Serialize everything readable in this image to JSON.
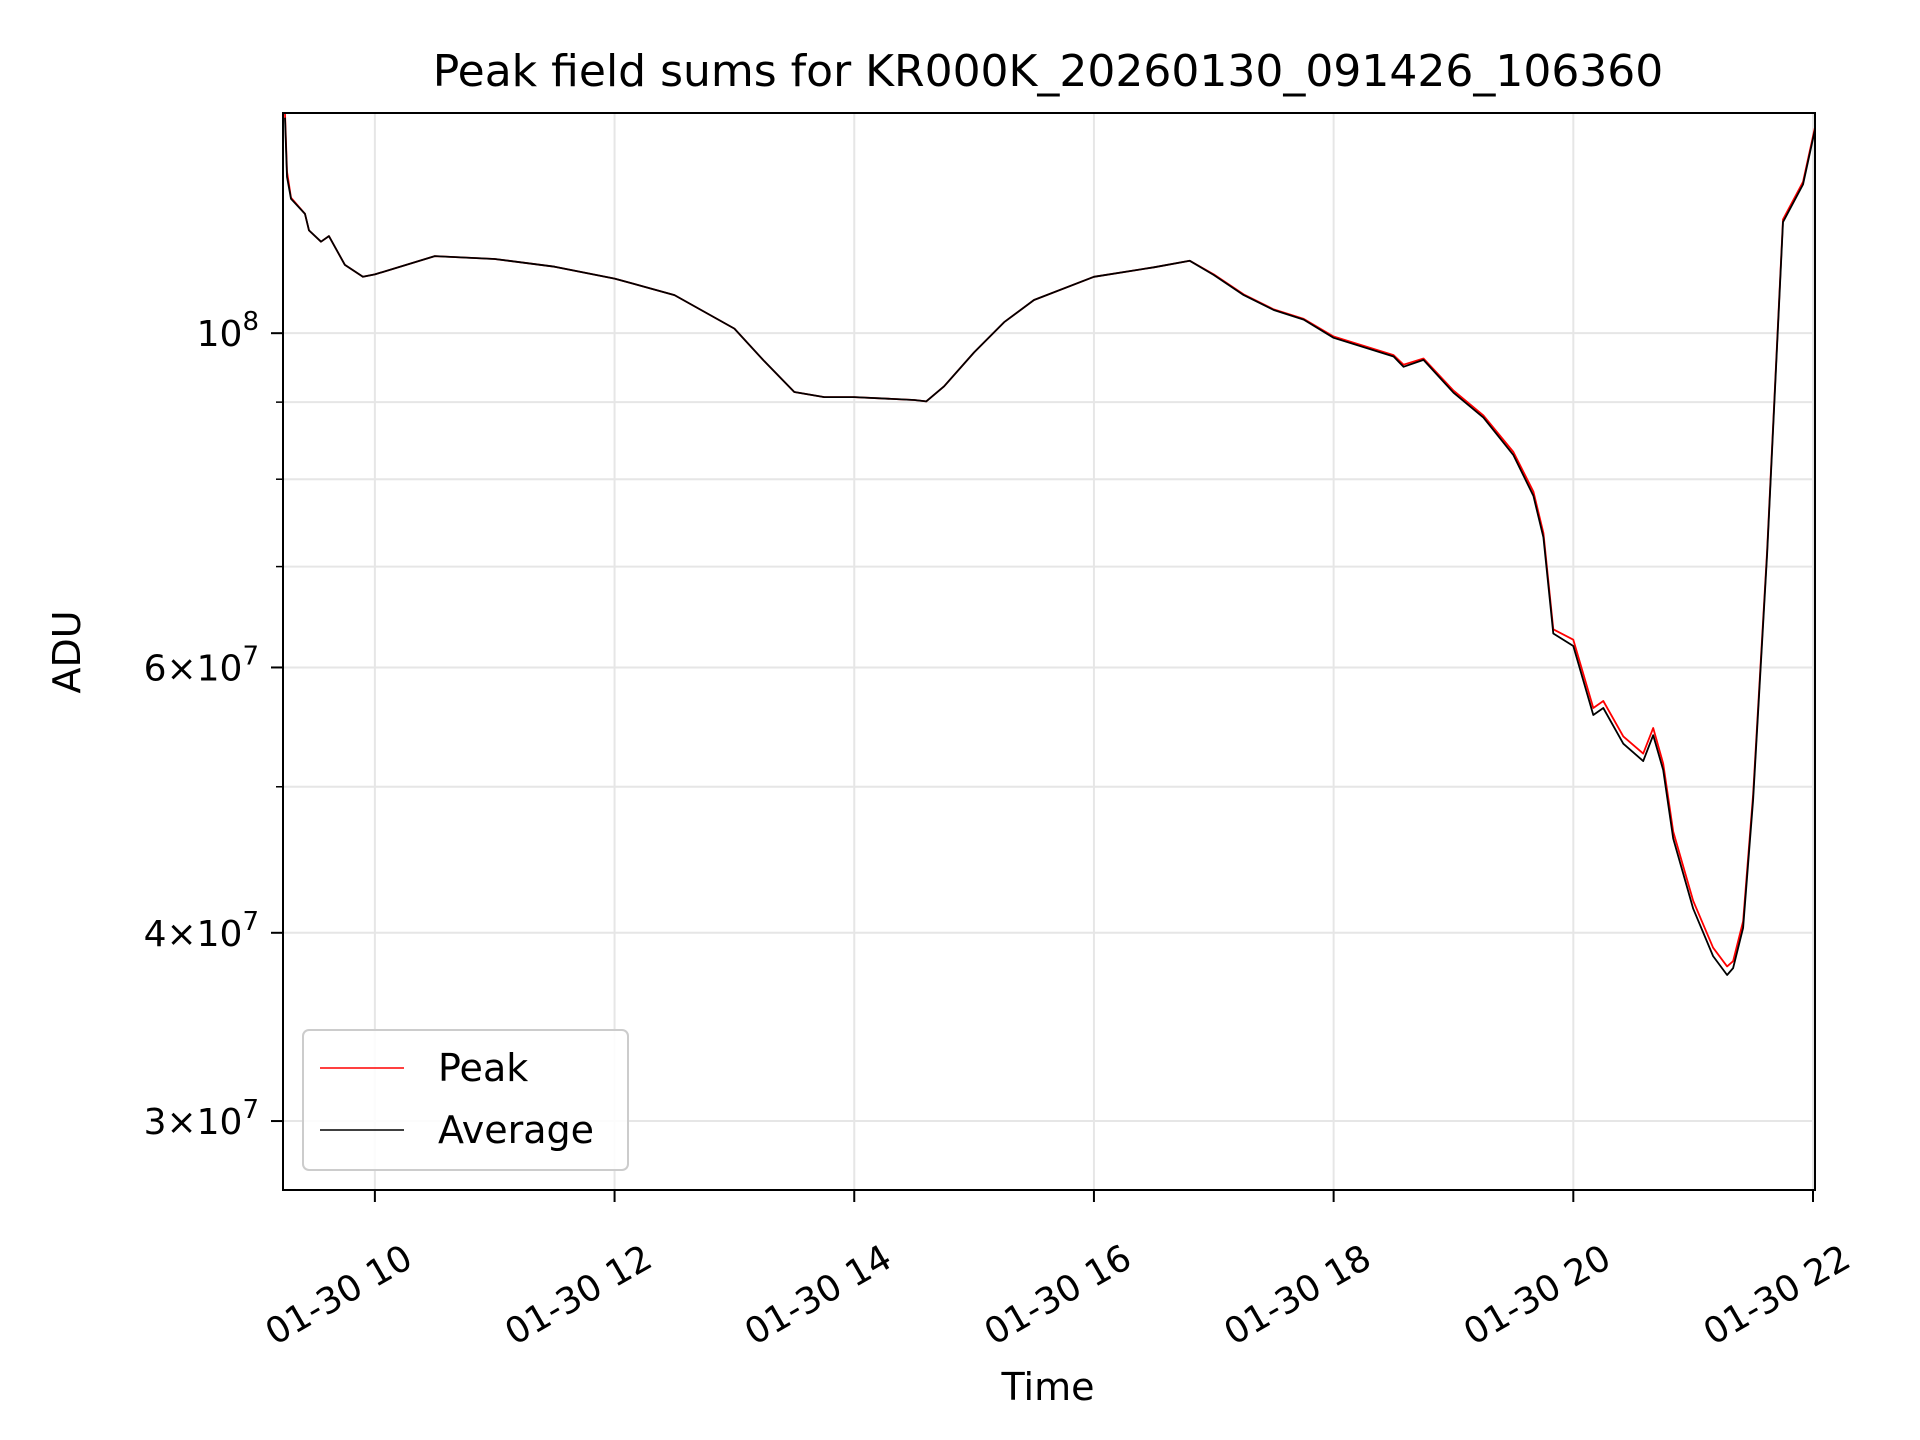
{
  "chart_data": {
    "type": "line",
    "title": "Peak field sums for KR000K_20260130_091426_106360",
    "xlabel": "Time",
    "ylabel": "ADU",
    "y_scale": "log",
    "ylim": [
      27000000,
      140000000
    ],
    "x_range": [
      "2026-01-30 09:14",
      "2026-01-30 22:01"
    ],
    "grid": true,
    "legend": "lower-left",
    "x_ticks": [
      {
        "t": "2026-01-30 10:00",
        "label": "01-30 10"
      },
      {
        "t": "2026-01-30 12:00",
        "label": "01-30 12"
      },
      {
        "t": "2026-01-30 14:00",
        "label": "01-30 14"
      },
      {
        "t": "2026-01-30 16:00",
        "label": "01-30 16"
      },
      {
        "t": "2026-01-30 18:00",
        "label": "01-30 18"
      },
      {
        "t": "2026-01-30 20:00",
        "label": "01-30 20"
      },
      {
        "t": "2026-01-30 22:00",
        "label": "01-30 22"
      }
    ],
    "y_ticks": [
      {
        "value": 100000000,
        "mant": "",
        "exp": "8"
      },
      {
        "value": 60000000,
        "mant": "6",
        "exp": "7"
      },
      {
        "value": 40000000,
        "mant": "4",
        "exp": "7"
      },
      {
        "value": 30000000,
        "mant": "3",
        "exp": "7"
      }
    ],
    "y_minor_ticks": [
      50000000,
      70000000,
      80000000,
      90000000
    ],
    "series": [
      {
        "name": "Peak",
        "color": "#ff0000",
        "points": [
          [
            "2026-01-30 09:15",
            140000000
          ],
          [
            "2026-01-30 09:16",
            128000000
          ],
          [
            "2026-01-30 09:18",
            123000000
          ],
          [
            "2026-01-30 09:25",
            120000000
          ],
          [
            "2026-01-30 09:27",
            117000000
          ],
          [
            "2026-01-30 09:33",
            115000000
          ],
          [
            "2026-01-30 09:37",
            116000000
          ],
          [
            "2026-01-30 09:45",
            111000000
          ],
          [
            "2026-01-30 09:54",
            109000000
          ],
          [
            "2026-01-30 10:00",
            109400000
          ],
          [
            "2026-01-30 10:30",
            112500000
          ],
          [
            "2026-01-30 11:00",
            112000000
          ],
          [
            "2026-01-30 11:30",
            110700000
          ],
          [
            "2026-01-30 12:00",
            108700000
          ],
          [
            "2026-01-30 12:30",
            106000000
          ],
          [
            "2026-01-30 13:00",
            100700000
          ],
          [
            "2026-01-30 13:15",
            95800000
          ],
          [
            "2026-01-30 13:30",
            91400000
          ],
          [
            "2026-01-30 13:45",
            90700000
          ],
          [
            "2026-01-30 14:00",
            90700000
          ],
          [
            "2026-01-30 14:30",
            90300000
          ],
          [
            "2026-01-30 14:36",
            90100000
          ],
          [
            "2026-01-30 14:45",
            92200000
          ],
          [
            "2026-01-30 15:00",
            97100000
          ],
          [
            "2026-01-30 15:15",
            101700000
          ],
          [
            "2026-01-30 15:30",
            105200000
          ],
          [
            "2026-01-30 16:00",
            109000000
          ],
          [
            "2026-01-30 16:30",
            110600000
          ],
          [
            "2026-01-30 16:48",
            111700000
          ],
          [
            "2026-01-30 17:00",
            109400000
          ],
          [
            "2026-01-30 17:15",
            106100000
          ],
          [
            "2026-01-30 17:30",
            103700000
          ],
          [
            "2026-01-30 17:45",
            102200000
          ],
          [
            "2026-01-30 18:00",
            99500000
          ],
          [
            "2026-01-30 18:30",
            96700000
          ],
          [
            "2026-01-30 18:35",
            95300000
          ],
          [
            "2026-01-30 18:45",
            96200000
          ],
          [
            "2026-01-30 19:00",
            91600000
          ],
          [
            "2026-01-30 19:15",
            88200000
          ],
          [
            "2026-01-30 19:30",
            83400000
          ],
          [
            "2026-01-30 19:40",
            78500000
          ],
          [
            "2026-01-30 19:45",
            73700000
          ],
          [
            "2026-01-30 19:50",
            63600000
          ],
          [
            "2026-01-30 20:00",
            62600000
          ],
          [
            "2026-01-30 20:10",
            56400000
          ],
          [
            "2026-01-30 20:15",
            57000000
          ],
          [
            "2026-01-30 20:25",
            54000000
          ],
          [
            "2026-01-30 20:35",
            52600000
          ],
          [
            "2026-01-30 20:40",
            54700000
          ],
          [
            "2026-01-30 20:45",
            51800000
          ],
          [
            "2026-01-30 20:50",
            46700000
          ],
          [
            "2026-01-30 21:00",
            42000000
          ],
          [
            "2026-01-30 21:10",
            39100000
          ],
          [
            "2026-01-30 21:17",
            38000000
          ],
          [
            "2026-01-30 21:20",
            38300000
          ],
          [
            "2026-01-30 21:25",
            40700000
          ],
          [
            "2026-01-30 21:30",
            49400000
          ],
          [
            "2026-01-30 21:37",
            71700000
          ],
          [
            "2026-01-30 21:45",
            119000000
          ],
          [
            "2026-01-30 21:55",
            126000000
          ],
          [
            "2026-01-30 22:01",
            137000000
          ]
        ]
      },
      {
        "name": "Average",
        "color": "#000000",
        "points": [
          [
            "2026-01-30 09:15",
            139000000
          ],
          [
            "2026-01-30 09:16",
            127000000
          ],
          [
            "2026-01-30 09:18",
            122800000
          ],
          [
            "2026-01-30 09:25",
            120000000
          ],
          [
            "2026-01-30 09:27",
            117000000
          ],
          [
            "2026-01-30 09:33",
            115000000
          ],
          [
            "2026-01-30 09:37",
            116000000
          ],
          [
            "2026-01-30 09:45",
            111000000
          ],
          [
            "2026-01-30 09:54",
            109000000
          ],
          [
            "2026-01-30 10:00",
            109400000
          ],
          [
            "2026-01-30 10:30",
            112500000
          ],
          [
            "2026-01-30 11:00",
            112000000
          ],
          [
            "2026-01-30 11:30",
            110700000
          ],
          [
            "2026-01-30 12:00",
            108700000
          ],
          [
            "2026-01-30 12:30",
            106000000
          ],
          [
            "2026-01-30 13:00",
            100700000
          ],
          [
            "2026-01-30 13:15",
            95800000
          ],
          [
            "2026-01-30 13:30",
            91400000
          ],
          [
            "2026-01-30 13:45",
            90700000
          ],
          [
            "2026-01-30 14:00",
            90700000
          ],
          [
            "2026-01-30 14:30",
            90300000
          ],
          [
            "2026-01-30 14:36",
            90100000
          ],
          [
            "2026-01-30 14:45",
            92200000
          ],
          [
            "2026-01-30 15:00",
            97100000
          ],
          [
            "2026-01-30 15:15",
            101700000
          ],
          [
            "2026-01-30 15:30",
            105200000
          ],
          [
            "2026-01-30 16:00",
            109000000
          ],
          [
            "2026-01-30 16:30",
            110600000
          ],
          [
            "2026-01-30 16:48",
            111700000
          ],
          [
            "2026-01-30 17:00",
            109300000
          ],
          [
            "2026-01-30 17:15",
            106000000
          ],
          [
            "2026-01-30 17:30",
            103600000
          ],
          [
            "2026-01-30 17:45",
            102100000
          ],
          [
            "2026-01-30 18:00",
            99300000
          ],
          [
            "2026-01-30 18:30",
            96500000
          ],
          [
            "2026-01-30 18:35",
            95000000
          ],
          [
            "2026-01-30 18:45",
            96000000
          ],
          [
            "2026-01-30 19:00",
            91300000
          ],
          [
            "2026-01-30 19:15",
            87900000
          ],
          [
            "2026-01-30 19:30",
            83000000
          ],
          [
            "2026-01-30 19:40",
            78000000
          ],
          [
            "2026-01-30 19:45",
            73200000
          ],
          [
            "2026-01-30 19:50",
            63200000
          ],
          [
            "2026-01-30 20:00",
            62000000
          ],
          [
            "2026-01-30 20:10",
            55800000
          ],
          [
            "2026-01-30 20:15",
            56400000
          ],
          [
            "2026-01-30 20:25",
            53400000
          ],
          [
            "2026-01-30 20:35",
            52000000
          ],
          [
            "2026-01-30 20:40",
            54100000
          ],
          [
            "2026-01-30 20:45",
            51300000
          ],
          [
            "2026-01-30 20:50",
            46200000
          ],
          [
            "2026-01-30 21:00",
            41500000
          ],
          [
            "2026-01-30 21:10",
            38600000
          ],
          [
            "2026-01-30 21:17",
            37500000
          ],
          [
            "2026-01-30 21:20",
            37900000
          ],
          [
            "2026-01-30 21:25",
            40300000
          ],
          [
            "2026-01-30 21:30",
            49000000
          ],
          [
            "2026-01-30 21:37",
            71300000
          ],
          [
            "2026-01-30 21:45",
            118500000
          ],
          [
            "2026-01-30 21:55",
            125500000
          ],
          [
            "2026-01-30 22:01",
            136500000
          ]
        ]
      }
    ]
  }
}
